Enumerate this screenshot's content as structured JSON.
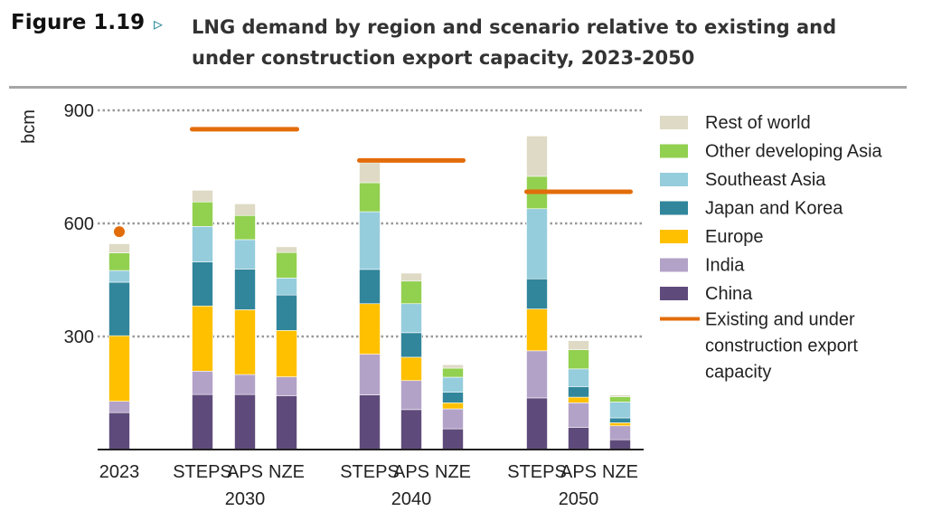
{
  "figure_label": "Figure 1.19",
  "title": "LNG demand by region and scenario relative to existing and under construction export capacity, 2023-2050",
  "colors": {
    "China": "#5f4b7b",
    "India": "#b3a2c8",
    "Europe": "#ffc000",
    "Japan and Korea": "#31869b",
    "Southeast Asia": "#95cddd",
    "Other developing Asia": "#92d050",
    "Rest of world": "#dfdac5",
    "capacity": "#e36c0a"
  },
  "chart_data": {
    "type": "bar",
    "stacked": true,
    "ylabel": "bcm",
    "ylim": [
      0,
      900
    ],
    "yticks": [
      300,
      600,
      900
    ],
    "grid": true,
    "legend_position": "right",
    "legend": [
      "Rest of world",
      "Other developing Asia",
      "Southeast Asia",
      "Japan and Korea",
      "Europe",
      "India",
      "China",
      "Existing and under construction export capacity"
    ],
    "categories": [
      {
        "label": "2023",
        "group": ""
      },
      {
        "label": "STEPS",
        "group": "2030"
      },
      {
        "label": "APS",
        "group": "2030"
      },
      {
        "label": "NZE",
        "group": "2030"
      },
      {
        "label": "STEPS",
        "group": "2040"
      },
      {
        "label": "APS",
        "group": "2040"
      },
      {
        "label": "NZE",
        "group": "2040"
      },
      {
        "label": "STEPS",
        "group": "2050"
      },
      {
        "label": "APS",
        "group": "2050"
      },
      {
        "label": "NZE",
        "group": "2050"
      }
    ],
    "groups": [
      "2030",
      "2040",
      "2050"
    ],
    "series": [
      {
        "name": "China",
        "values": [
          98,
          146,
          146,
          143,
          145,
          106,
          55,
          137,
          59,
          26
        ]
      },
      {
        "name": "India",
        "values": [
          30,
          62,
          53,
          50,
          108,
          77,
          53,
          125,
          65,
          37
        ]
      },
      {
        "name": "Europe",
        "values": [
          174,
          173,
          172,
          123,
          134,
          62,
          16,
          111,
          15,
          8
        ]
      },
      {
        "name": "Japan and Korea",
        "values": [
          142,
          117,
          108,
          94,
          91,
          65,
          28,
          80,
          28,
          13
        ]
      },
      {
        "name": "Southeast Asia",
        "values": [
          31,
          94,
          78,
          45,
          153,
          77,
          40,
          186,
          47,
          42
        ]
      },
      {
        "name": "Other developing Asia",
        "values": [
          47,
          65,
          64,
          68,
          77,
          60,
          24,
          86,
          51,
          14
        ]
      },
      {
        "name": "Rest of world",
        "values": [
          24,
          31,
          31,
          15,
          53,
          21,
          9,
          107,
          24,
          5
        ]
      }
    ],
    "capacity": {
      "name": "Existing and under construction export capacity",
      "2023": 578,
      "2030": 850,
      "2040": 767,
      "2050": 684
    }
  }
}
